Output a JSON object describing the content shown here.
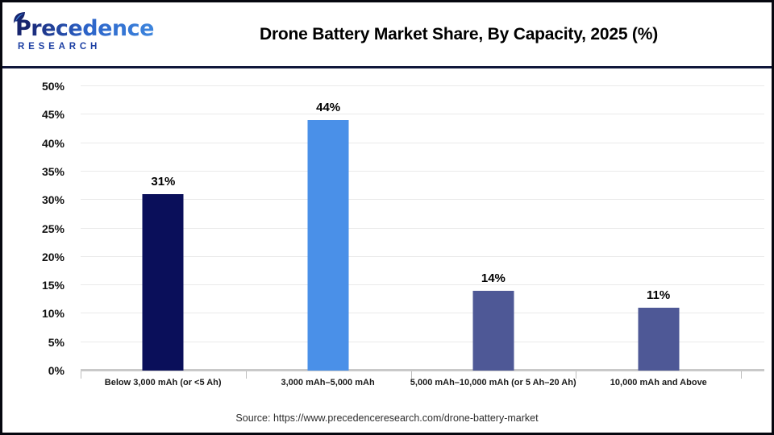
{
  "header": {
    "logo": {
      "brand_initial": "P",
      "brand_rest": "recedence",
      "sub": "RESEARCH"
    },
    "title": "Drone Battery Market Share, By Capacity, 2025 (%)"
  },
  "chart_data": {
    "type": "bar",
    "title": "Drone Battery Market Share, By Capacity, 2025 (%)",
    "categories": [
      "Below 3,000 mAh (or <5 Ah)",
      "3,000 mAh–5,000 mAh",
      "5,000 mAh–10,000 mAh (or 5 Ah–20 Ah)",
      "10,000 mAh and Above"
    ],
    "values": [
      31,
      44,
      14,
      11
    ],
    "value_labels": [
      "31%",
      "44%",
      "14%",
      "11%"
    ],
    "bar_colors": [
      "#0a0f5a",
      "#4a90e8",
      "#4e5896",
      "#4e5896"
    ],
    "ylim": [
      0,
      50
    ],
    "ytick_step": 5,
    "ytick_labels": [
      "0%",
      "5%",
      "10%",
      "15%",
      "20%",
      "25%",
      "30%",
      "35%",
      "40%",
      "45%",
      "50%"
    ],
    "grid": true,
    "legend": false
  },
  "footer": {
    "source": "Source: https://www.precedenceresearch.com/drone-battery-market"
  },
  "colors": {
    "bar_navy": "#0a0f5a",
    "bar_light_blue": "#4a90e8",
    "bar_slate": "#4e5896",
    "gridline": "#eaeaea",
    "baseline": "#c9c9c9",
    "frame_border": "#06070f",
    "header_divider": "#10173b",
    "brand_navy": "#16246e",
    "brand_blue": "#2c63c8"
  }
}
